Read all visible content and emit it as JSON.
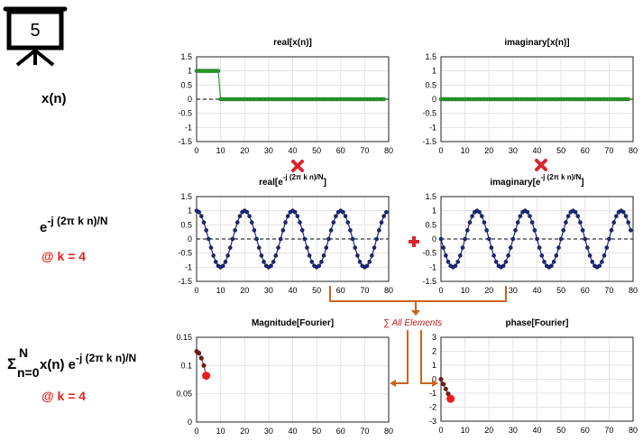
{
  "slide_number": "5",
  "left_labels": {
    "xn": "x(n)",
    "kernel": {
      "base": "e",
      "exp": "-j (2π k n)/N"
    },
    "k_note_1": "@ k = 4",
    "sum": {
      "sigma": "Σ",
      "upper": "N",
      "lower": "n=0",
      "body": " x(n) e",
      "exp": "-j (2π k n)/N"
    },
    "k_note_2": "@ k = 4"
  },
  "operators": {
    "sum_all": "∑ All Elements"
  },
  "colors": {
    "green_series": "#27a12a",
    "blue_series": "#1e2a7a",
    "dark_red_series": "#7a1a14",
    "highlight_red": "#ee1c1c",
    "arrow_orange": "#c8641e",
    "operator_red": "#d9262b",
    "grid": "#e2e2e2"
  },
  "icons": {
    "presentation": "presentation-board-icon",
    "multiply": "multiply-x-icon",
    "plus": "plus-icon"
  },
  "chart_data": [
    {
      "id": "real-xn",
      "type": "line",
      "title": "real[x(n)]",
      "xlim": [
        0,
        80
      ],
      "ylim": [
        -1.5,
        1.5
      ],
      "xticks": [
        0,
        10,
        20,
        30,
        40,
        50,
        60,
        70,
        80
      ],
      "xtick_labels": [
        "0",
        "10",
        "20",
        "30",
        "40",
        "50",
        "60",
        "70",
        "80"
      ],
      "yticks": [
        1.5,
        1,
        0.5,
        0,
        -0.5,
        -1,
        -1.5
      ],
      "ytick_labels": [
        "1.5",
        "1",
        "0.5",
        "0",
        "-0.5",
        "-1",
        "-1.5"
      ],
      "grid": true,
      "zero_line": "dashed",
      "series": [
        {
          "style": "green",
          "x_start": 0,
          "x_end": 78,
          "rule": "rect",
          "high_until": 9,
          "high": 1,
          "low": 0
        }
      ]
    },
    {
      "id": "imag-xn",
      "type": "line",
      "title": "imaginary[x(n)]",
      "xlim": [
        0,
        80
      ],
      "ylim": [
        -1.5,
        1.5
      ],
      "xticks": [
        0,
        10,
        20,
        30,
        40,
        50,
        60,
        70,
        80
      ],
      "xtick_labels": [
        "0",
        "10",
        "20",
        "30",
        "40",
        "50",
        "60",
        "70",
        "80"
      ],
      "yticks": [
        1.5,
        1,
        0.5,
        0,
        -0.5,
        -1,
        -1.5
      ],
      "ytick_labels": [
        "1.5",
        "1",
        "0.5",
        "0",
        "-0.5",
        "-1",
        "-1.5"
      ],
      "grid": true,
      "zero_line": "dashed",
      "series": [
        {
          "style": "green",
          "x_start": 0,
          "x_end": 78,
          "rule": "zero"
        }
      ]
    },
    {
      "id": "real-kernel",
      "type": "line",
      "title": {
        "prefix": "real[e",
        "exp": "-j (2π k n)/N",
        "suffix": "]"
      },
      "xlim": [
        0,
        80
      ],
      "ylim": [
        -1.5,
        1.5
      ],
      "xticks": [
        0,
        10,
        20,
        30,
        40,
        50,
        60,
        70,
        80
      ],
      "xtick_labels": [
        "0",
        "10",
        "20",
        "30",
        "40",
        "50",
        "60",
        "70",
        "80"
      ],
      "yticks": [
        1.5,
        1,
        0.5,
        0,
        -0.5,
        -1,
        -1.5
      ],
      "ytick_labels": [
        "1.5",
        "1",
        "0.5",
        "0",
        "-0.5",
        "-1",
        "-1.5"
      ],
      "grid": true,
      "zero_line": "dashed",
      "series": [
        {
          "style": "blue",
          "x_start": 0,
          "x_end": 79,
          "rule": "cos",
          "k": 4,
          "N": 80
        }
      ]
    },
    {
      "id": "imag-kernel",
      "type": "line",
      "title": {
        "prefix": "imaginary[e",
        "exp": "-j (2π k n)/N",
        "suffix": "]"
      },
      "xlim": [
        0,
        80
      ],
      "ylim": [
        -1.5,
        1.5
      ],
      "xticks": [
        0,
        10,
        20,
        30,
        40,
        50,
        60,
        70,
        80
      ],
      "xtick_labels": [
        "0",
        "10",
        "20",
        "30",
        "40",
        "50",
        "60",
        "70",
        "80"
      ],
      "yticks": [
        1.5,
        1,
        0.5,
        0,
        -0.5,
        -1,
        -1.5
      ],
      "ytick_labels": [
        "1.5",
        "1",
        "0.5",
        "0",
        "-0.5",
        "-1",
        "-1.5"
      ],
      "grid": true,
      "zero_line": "dashed",
      "series": [
        {
          "style": "blue",
          "x_start": 0,
          "x_end": 79,
          "rule": "negsin",
          "k": 4,
          "N": 80
        }
      ]
    },
    {
      "id": "magnitude",
      "type": "line",
      "title": "Magnitude[Fourier]",
      "xlim": [
        0,
        80
      ],
      "ylim": [
        0,
        0.15
      ],
      "xticks": [
        0,
        10,
        20,
        30,
        40,
        50,
        60,
        70,
        80
      ],
      "xtick_labels": [
        "0",
        "10",
        "20",
        "30",
        "40",
        "50",
        "60",
        "70",
        "80"
      ],
      "yticks": [
        0.15,
        0.1,
        0.05,
        0
      ],
      "ytick_labels": [
        "0.15",
        "0.1",
        "0.05",
        "0"
      ],
      "grid": true,
      "zero_line": "dashed",
      "series": [
        {
          "style": "darkred",
          "points": [
            [
              0,
              0.125
            ],
            [
              1,
              0.122
            ],
            [
              2,
              0.113
            ],
            [
              3,
              0.1
            ],
            [
              4,
              0.082
            ]
          ],
          "highlight": [
            4,
            0.082
          ]
        }
      ]
    },
    {
      "id": "phase",
      "type": "line",
      "title": "phase[Fourier]",
      "xlim": [
        0,
        80
      ],
      "ylim": [
        -3,
        3
      ],
      "xticks": [
        0,
        10,
        20,
        30,
        40,
        50,
        60,
        70,
        80
      ],
      "xtick_labels": [
        "0",
        "10",
        "20",
        "30",
        "40",
        "50",
        "60",
        "70",
        "80"
      ],
      "yticks": [
        3,
        2,
        1,
        0,
        -1,
        -2,
        -3
      ],
      "ytick_labels": [
        "3",
        "2",
        "1",
        "0",
        "-1",
        "-2",
        "-3"
      ],
      "grid": true,
      "zero_line": "none",
      "series": [
        {
          "style": "darkred",
          "points": [
            [
              0,
              0
            ],
            [
              1,
              -0.35
            ],
            [
              2,
              -0.7
            ],
            [
              3,
              -1.05
            ],
            [
              4,
              -1.4
            ]
          ],
          "highlight": [
            4,
            -1.4
          ]
        }
      ]
    }
  ]
}
